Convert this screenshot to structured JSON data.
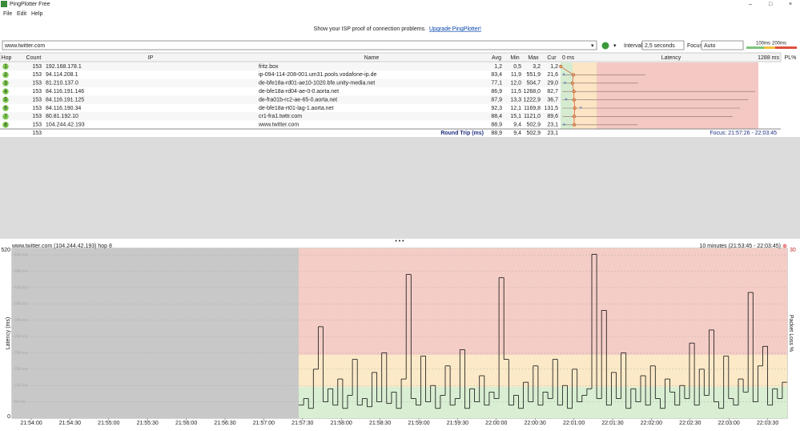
{
  "window": {
    "title": "PingPlotter Free"
  },
  "menu": [
    "File",
    "Edit",
    "Help"
  ],
  "banner": {
    "text": "Show your ISP proof of connection problems.",
    "link": "Upgrade PingPlotter!"
  },
  "toolbar": {
    "target": "www.twitter.com",
    "interval_label": "Interval",
    "interval": "2,5 seconds",
    "focus_label": "Focus",
    "focus": "Auto",
    "scale": [
      "100ms",
      "200ms"
    ]
  },
  "table": {
    "columns": [
      "Hop",
      "Count",
      "IP",
      "Name",
      "Avg",
      "Min",
      "Max",
      "Cur",
      "0 ms",
      "Latency",
      "1288 ms",
      "PL%"
    ],
    "rows": [
      [
        "1",
        "153",
        "192.168.178.1",
        "fritz.box",
        "1,2",
        "0,5",
        "3,2",
        "1,2"
      ],
      [
        "2",
        "153",
        "94.114.208.1",
        "ip-094-114-208-001.um31.pools.vodafone-ip.de",
        "83,4",
        "11,9",
        "551,9",
        "21,6"
      ],
      [
        "3",
        "153",
        "81.210.137.0",
        "de-bfe18a-rd01-ae10-1020.bfe.unity-media.net",
        "77,1",
        "12,0",
        "504,7",
        "29,0"
      ],
      [
        "4",
        "153",
        "84.116.191.146",
        "de-bfe18a-rd04-ae-0-0.aorta.net",
        "86,9",
        "11,5",
        "1268,0",
        "82,7"
      ],
      [
        "5",
        "153",
        "84.116.191.125",
        "de-fra01b-rc2-ae-65-0.aorta.net",
        "87,9",
        "13,3",
        "1222,9",
        "36,7"
      ],
      [
        "6",
        "153",
        "84.116.190.34",
        "de-bfe18a-rt01-lag-1.aorta.net",
        "92,3",
        "12,1",
        "1169,8",
        "131,5"
      ],
      [
        "7",
        "153",
        "80.81.192.10",
        "cr1-fra1.twttr.com",
        "88,4",
        "15,1",
        "1121,0",
        "89,6"
      ],
      [
        "8",
        "153",
        "104.244.42.193",
        "www.twitter.com",
        "88,9",
        "9,4",
        "502,9",
        "23,1"
      ]
    ],
    "summary": {
      "count": "153",
      "label": "Round Trip (ms)",
      "avg": "88,9",
      "min": "9,4",
      "max": "502,9",
      "cur": "23,1",
      "focus": "Focus: 21:57:26 - 22:03:45"
    }
  },
  "graph": {
    "title": "www.twitter.com (104.244.42.193) hop 8",
    "range": "10 minutes (21:53:45 - 22:03:45)",
    "y_label": "Latency (ms)",
    "y2_label": "Packet Loss %",
    "ylim": [
      0,
      520
    ],
    "y2ticks": [
      30
    ],
    "yticks": [
      {
        "value": 50,
        "label": "50 ms"
      },
      {
        "value": 100,
        "label": "100 ms"
      },
      {
        "value": 150,
        "label": "150 ms"
      },
      {
        "value": 200,
        "label": "200 ms"
      },
      {
        "value": 250,
        "label": "250 ms"
      },
      {
        "value": 300,
        "label": "300 ms"
      },
      {
        "value": 350,
        "label": "350 ms"
      },
      {
        "value": 400,
        "label": "400 ms"
      },
      {
        "value": 450,
        "label": "450 ms"
      },
      {
        "value": 500,
        "label": "500 ms"
      }
    ],
    "xticks": [
      "21:54:00",
      "21:54:30",
      "21:55:00",
      "21:55:30",
      "21:56:00",
      "21:56:30",
      "21:57:00",
      "21:57:30",
      "21:58:00",
      "21:58:30",
      "21:59:00",
      "21:59:30",
      "22:00:00",
      "22:00:30",
      "22:01:00",
      "22:01:30",
      "22:02:00",
      "22:02:30",
      "22:03:00",
      "22:03:30"
    ],
    "latency": [
      40,
      60,
      30,
      150,
      280,
      50,
      90,
      40,
      120,
      30,
      70,
      180,
      40,
      60,
      35,
      140,
      50,
      200,
      45,
      80,
      30,
      120,
      440,
      60,
      40,
      190,
      50,
      100,
      30,
      70,
      160,
      40,
      60,
      210,
      30,
      90,
      50,
      130,
      40,
      80,
      60,
      430,
      180,
      40,
      70,
      30,
      110,
      50,
      160,
      40,
      80,
      60,
      180,
      40,
      100,
      30,
      150,
      50,
      70,
      90,
      502,
      60,
      330,
      40,
      140,
      60,
      200,
      30,
      90,
      50,
      130,
      40,
      160,
      60,
      30,
      120,
      80,
      40,
      100,
      60,
      230,
      40,
      150,
      70,
      270,
      50,
      30,
      190,
      60,
      40,
      120,
      80,
      385,
      50,
      160,
      220,
      40,
      90,
      60,
      110
    ]
  }
}
